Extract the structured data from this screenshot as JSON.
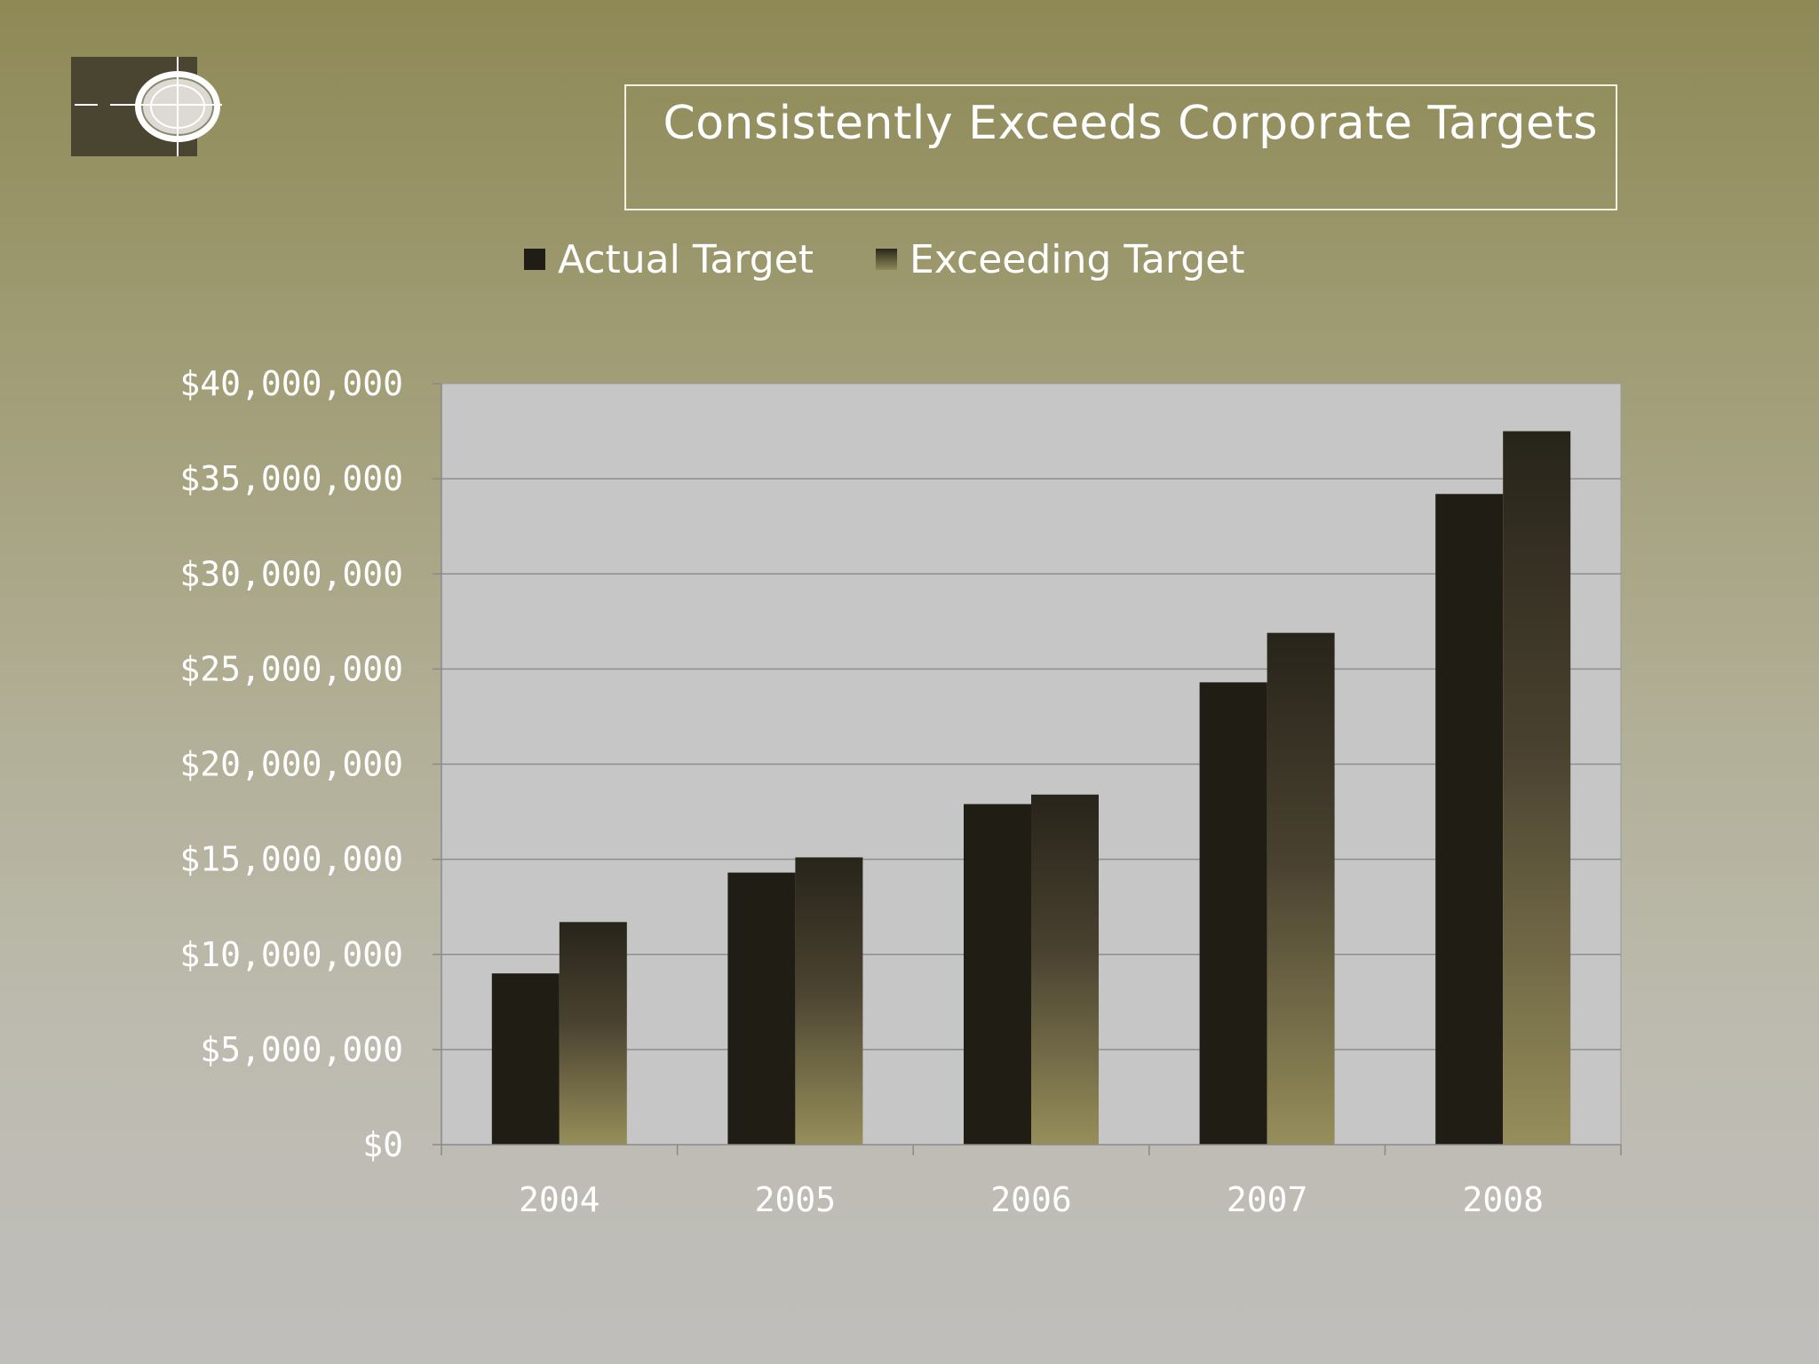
{
  "slide": {
    "title": "Consistently Exceeds Corporate Targets",
    "logo": "globe-crosshair-logo"
  },
  "colors": {
    "background_top": "#8e8955",
    "background_bottom": "#bfbebb",
    "plot_area": "#c6c6c6",
    "actual_bar": "#1f1d14",
    "exceeding_bar_top": "#2a271a",
    "exceeding_bar_bottom": "#8f8858"
  },
  "chart_data": {
    "type": "bar",
    "title": "Consistently Exceeds Corporate Targets",
    "categories": [
      "2004",
      "2005",
      "2006",
      "2007",
      "2008"
    ],
    "series": [
      {
        "name": "Actual Target",
        "values": [
          9000000,
          14300000,
          17900000,
          24300000,
          34200000
        ]
      },
      {
        "name": "Exceeding Target",
        "values": [
          11700000,
          15100000,
          18400000,
          26900000,
          37500000
        ]
      }
    ],
    "ylim": [
      0,
      40000000
    ],
    "yticks": [
      0,
      5000000,
      10000000,
      15000000,
      20000000,
      25000000,
      30000000,
      35000000,
      40000000
    ],
    "ytick_labels": [
      "$0",
      "$5,000,000",
      "$10,000,000",
      "$15,000,000",
      "$20,000,000",
      "$25,000,000",
      "$30,000,000",
      "$35,000,000",
      "$40,000,000"
    ],
    "xlabel": "",
    "ylabel": "",
    "grid": true,
    "legend": "top"
  }
}
